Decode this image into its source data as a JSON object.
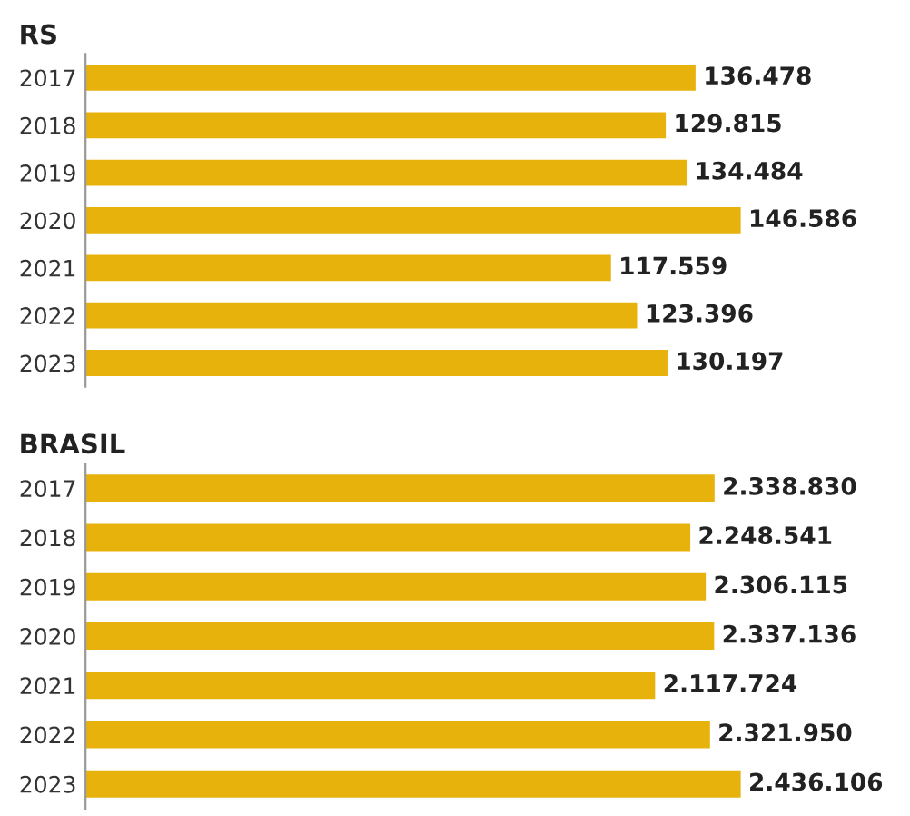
{
  "chart_data": [
    {
      "type": "bar",
      "orientation": "horizontal",
      "title": "RS",
      "categories": [
        "2017",
        "2018",
        "2019",
        "2020",
        "2021",
        "2022",
        "2023"
      ],
      "values": [
        136478,
        129815,
        134484,
        146586,
        117559,
        123396,
        130197
      ],
      "value_labels": [
        "136.478",
        "129.815",
        "134.484",
        "146.586",
        "117.559",
        "123.396",
        "130.197"
      ],
      "color": "#e8b20c",
      "tick_labels": "y",
      "grid": false,
      "legend": false
    },
    {
      "type": "bar",
      "orientation": "horizontal",
      "title": "BRASIL",
      "categories": [
        "2017",
        "2018",
        "2019",
        "2020",
        "2021",
        "2022",
        "2023"
      ],
      "values": [
        2338830,
        2248541,
        2306115,
        2337136,
        2117724,
        2321950,
        2436106
      ],
      "value_labels": [
        "2.338.830",
        "2.248.541",
        "2.306.115",
        "2.337.136",
        "2.117.724",
        "2.321.950",
        "2.436.106"
      ],
      "color": "#e8b20c",
      "tick_labels": "y",
      "grid": false,
      "legend": false
    }
  ]
}
